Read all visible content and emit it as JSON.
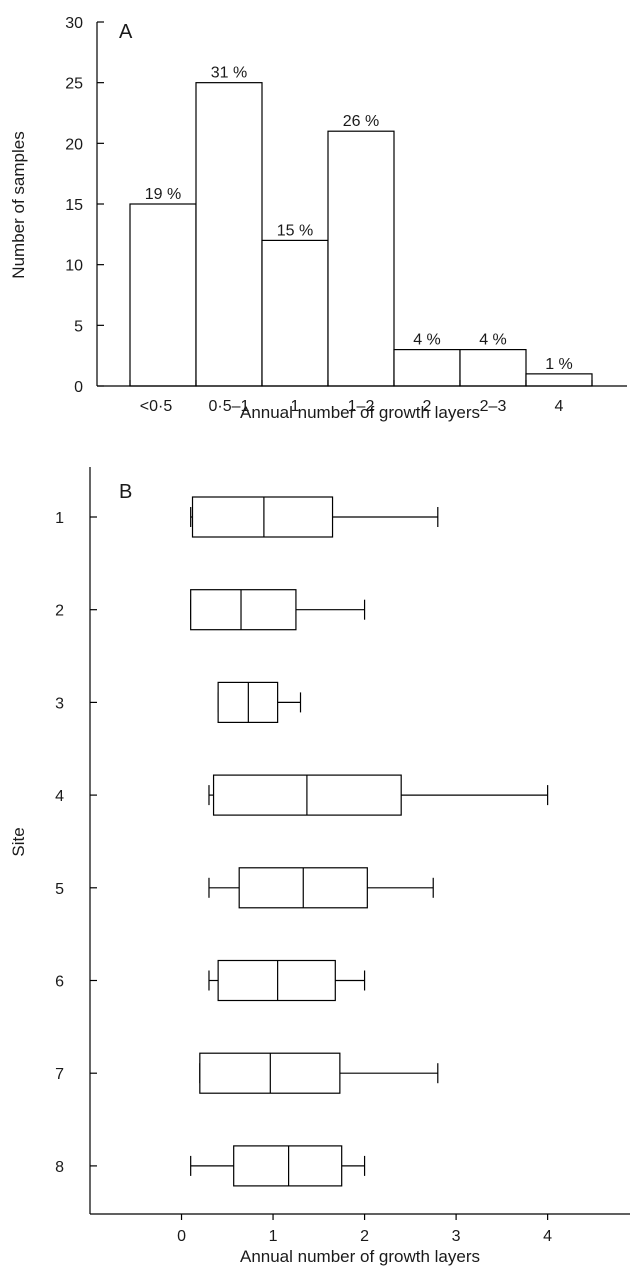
{
  "chart_data": [
    {
      "type": "bar",
      "panel_label": "A",
      "categories": [
        "<0·5",
        "0·5–1",
        "1",
        "1–2",
        "2",
        "2–3",
        "4"
      ],
      "values": [
        15,
        25,
        12,
        21,
        3,
        3,
        1
      ],
      "bar_labels": [
        "19 %",
        "31 %",
        "15 %",
        "26 %",
        "4 %",
        "4 %",
        "1 %"
      ],
      "xlabel": "Annual number of growth layers",
      "ylabel": "Number of samples",
      "ylim": [
        0,
        30
      ],
      "yticks": [
        0,
        5,
        10,
        15,
        20,
        25,
        30
      ]
    },
    {
      "type": "boxplot",
      "orientation": "horizontal",
      "panel_label": "B",
      "xlabel": "Annual number of growth layers",
      "ylabel": "Site",
      "xlim": [
        -1,
        4.9
      ],
      "xticks": [
        0,
        1,
        2,
        3,
        4
      ],
      "sites": [
        "1",
        "2",
        "3",
        "4",
        "5",
        "6",
        "7",
        "8"
      ],
      "boxes": [
        {
          "site": "1",
          "min": 0.1,
          "q1": 0.12,
          "median": 0.9,
          "q3": 1.65,
          "max": 2.8
        },
        {
          "site": "2",
          "min": 0.1,
          "q1": 0.1,
          "median": 0.65,
          "q3": 1.25,
          "max": 2.0
        },
        {
          "site": "3",
          "min": 0.4,
          "q1": 0.4,
          "median": 0.73,
          "q3": 1.05,
          "max": 1.3
        },
        {
          "site": "4",
          "min": 0.3,
          "q1": 0.35,
          "median": 1.37,
          "q3": 2.4,
          "max": 4.0
        },
        {
          "site": "5",
          "min": 0.3,
          "q1": 0.63,
          "median": 1.33,
          "q3": 2.03,
          "max": 2.75
        },
        {
          "site": "6",
          "min": 0.3,
          "q1": 0.4,
          "median": 1.05,
          "q3": 1.68,
          "max": 2.0
        },
        {
          "site": "7",
          "min": 0.2,
          "q1": 0.2,
          "median": 0.97,
          "q3": 1.73,
          "max": 2.8
        },
        {
          "site": "8",
          "min": 0.1,
          "q1": 0.57,
          "median": 1.17,
          "q3": 1.75,
          "max": 2.0
        }
      ]
    }
  ]
}
